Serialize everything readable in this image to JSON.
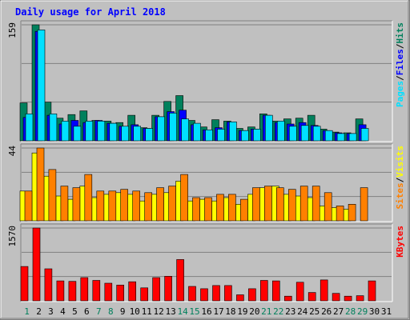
{
  "chart_data": {
    "type": "bar",
    "title": "Daily usage for April 2018",
    "x": [
      "1",
      "2",
      "3",
      "4",
      "5",
      "6",
      "7",
      "8",
      "9",
      "10",
      "11",
      "12",
      "13",
      "14",
      "15",
      "16",
      "17",
      "18",
      "19",
      "20",
      "21",
      "22",
      "23",
      "24",
      "25",
      "26",
      "27",
      "28",
      "29",
      "30",
      "31"
    ],
    "weekend_days": [
      "1",
      "7",
      "8",
      "14",
      "15",
      "21",
      "22",
      "28",
      "29"
    ],
    "panels": [
      {
        "id": "hits",
        "max_label": "159",
        "ymax": 159,
        "series": [
          {
            "name": "Hits",
            "color": "#00805c",
            "values": [
              52,
              159,
              53,
              31,
              36,
              41,
              28,
              27,
              25,
              35,
              18,
              35,
              54,
              62,
              28,
              19,
              29,
              27,
              17,
              19,
              37,
              27,
              30,
              31,
              35,
              16,
              12,
              11,
              30,
              null,
              null
            ]
          },
          {
            "name": "Files",
            "color": "#0000ff",
            "values": [
              32,
              150,
              35,
              23,
              28,
              25,
              28,
              24,
              20,
              22,
              17,
              33,
              40,
              42,
              22,
              15,
              18,
              26,
              14,
              16,
              35,
              25,
              23,
              25,
              21,
              14,
              11,
              10,
              22,
              null,
              null
            ]
          },
          {
            "name": "Pages",
            "color": "#00e0ff",
            "values": [
              37,
              152,
              37,
              27,
              20,
              27,
              27,
              24,
              20,
              20,
              17,
              33,
              38,
              30,
              24,
              15,
              16,
              26,
              14,
              16,
              35,
              27,
              20,
              21,
              20,
              14,
              10,
              10,
              17,
              null,
              null
            ]
          }
        ],
        "axis_labels": [
          {
            "text": "Hits",
            "color": "#00805c"
          },
          {
            "text": "/",
            "color": "#000000"
          },
          {
            "text": "Files",
            "color": "#0000ff"
          },
          {
            "text": "/",
            "color": "#000000"
          },
          {
            "text": "Pages",
            "color": "#00e0ff"
          }
        ]
      },
      {
        "id": "visits",
        "max_label": "44",
        "ymax": 44,
        "series": [
          {
            "name": "Visits",
            "color": "#ffff00",
            "values": [
              18,
              41,
              27,
              15,
              13,
              21,
              14,
              16,
              17,
              16,
              12,
              16,
              17,
              24,
              12,
              13,
              12,
              14,
              10,
              16,
              20,
              21,
              16,
              15,
              14,
              9,
              8,
              7,
              null,
              null,
              null
            ]
          },
          {
            "name": "Sites",
            "color": "#ff8000",
            "values": [
              18,
              44,
              31,
              21,
              20,
              28,
              18,
              18,
              19,
              18,
              17,
              20,
              21,
              28,
              14,
              14,
              16,
              16,
              13,
              20,
              21,
              20,
              19,
              21,
              21,
              17,
              9,
              10,
              20,
              null,
              null
            ]
          }
        ],
        "axis_labels": [
          {
            "text": "Visits",
            "color": "#ffff00"
          },
          {
            "text": "/",
            "color": "#000000"
          },
          {
            "text": "Sites",
            "color": "#ff8000"
          }
        ]
      },
      {
        "id": "kbytes",
        "max_label": "1570",
        "ymax": 1570,
        "series": [
          {
            "name": "KBytes",
            "color": "#ff0000",
            "values": [
              740,
              1570,
              690,
              430,
              420,
              500,
              440,
              380,
              340,
              410,
              280,
              500,
              530,
              890,
              310,
              260,
              330,
              330,
              130,
              260,
              440,
              430,
              100,
              400,
              180,
              450,
              160,
              100,
              110,
              430,
              null
            ]
          }
        ],
        "axis_labels": [
          {
            "text": "KBytes",
            "color": "#ff0000"
          }
        ]
      }
    ]
  }
}
